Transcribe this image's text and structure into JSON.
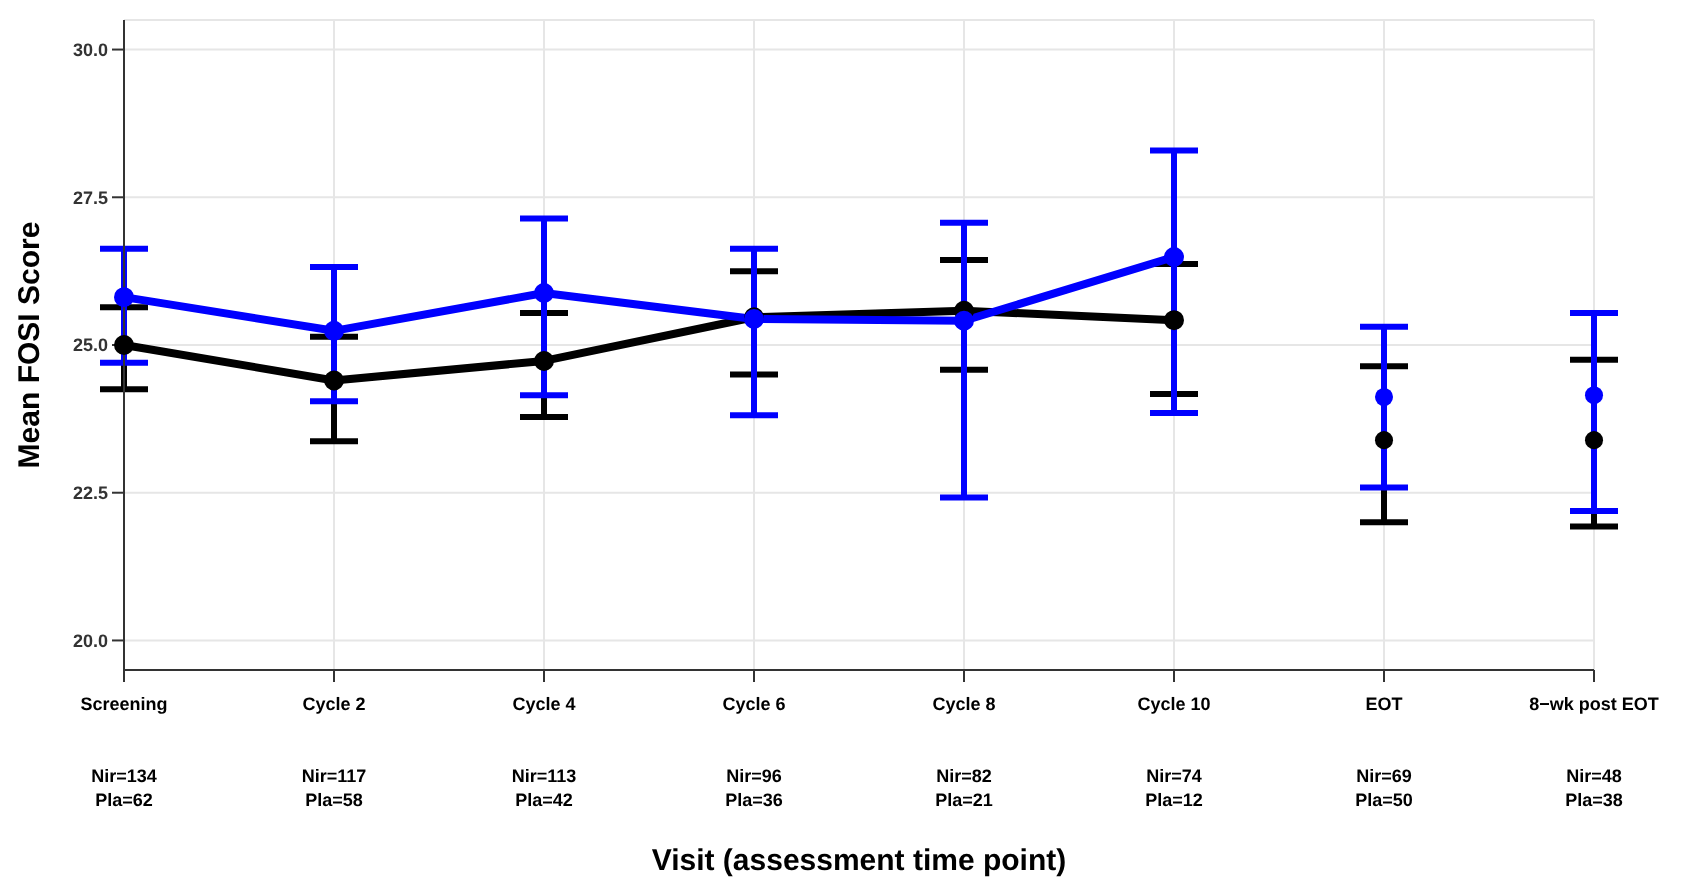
{
  "chart_data": {
    "type": "line",
    "xlabel": "Visit (assessment time point)",
    "ylabel": "Mean FOSI Score",
    "categories": [
      "Screening",
      "Cycle 2",
      "Cycle 4",
      "Cycle 6",
      "Cycle 8",
      "Cycle 10",
      "EOT",
      "8−wk post EOT"
    ],
    "series": [
      {
        "color": "#000000",
        "values": [
          25.0,
          24.4,
          24.73,
          25.47,
          25.58,
          25.42,
          null,
          null
        ],
        "errors": [
          [
            24.25,
            25.64
          ],
          [
            23.37,
            25.14
          ],
          [
            23.78,
            25.54
          ],
          [
            24.5,
            26.25
          ],
          [
            24.58,
            26.44
          ],
          [
            24.17,
            26.37
          ],
          null,
          null
        ]
      },
      {
        "color": "#0000ff",
        "values": [
          25.81,
          25.24,
          25.88,
          25.44,
          25.41,
          26.49,
          null,
          null
        ],
        "errors": [
          [
            24.7,
            26.63
          ],
          [
            24.05,
            26.32
          ],
          [
            24.15,
            27.14
          ],
          [
            23.81,
            26.63
          ],
          [
            22.42,
            27.07
          ],
          [
            23.85,
            28.29
          ],
          null,
          null
        ]
      },
      {
        "type": "scatter",
        "color": "#000000",
        "values": [
          null,
          null,
          null,
          null,
          null,
          null,
          23.39,
          23.39
        ],
        "errors": [
          null,
          null,
          null,
          null,
          null,
          null,
          [
            22.0,
            24.64
          ],
          [
            21.93,
            24.75
          ]
        ]
      },
      {
        "type": "scatter",
        "color": "#0000ff",
        "values": [
          null,
          null,
          null,
          null,
          null,
          null,
          24.12,
          24.15
        ],
        "errors": [
          null,
          null,
          null,
          null,
          null,
          null,
          [
            22.59,
            25.31
          ],
          [
            22.19,
            25.54
          ]
        ]
      }
    ],
    "ylim": [
      19.5,
      30.5
    ],
    "yticks": [
      {
        "value": 20,
        "label": "20.0"
      },
      {
        "value": 22.5,
        "label": "22.5"
      },
      {
        "value": 25,
        "label": "25.0"
      },
      {
        "value": 27.5,
        "label": "27.5"
      },
      {
        "value": 30,
        "label": "30.0"
      }
    ],
    "annotations": [
      "Nir=134\nPla=62",
      "Nir=117\nPla=58",
      "Nir=113\nPla=42",
      "Nir=96\nPla=36",
      "Nir=82\nPla=21",
      "Nir=74\nPla=12",
      "Nir=69\nPla=50",
      "Nir=48\nPla=38"
    ],
    "grid": true,
    "legend": false,
    "marker": "circle",
    "line_style": "solid"
  }
}
